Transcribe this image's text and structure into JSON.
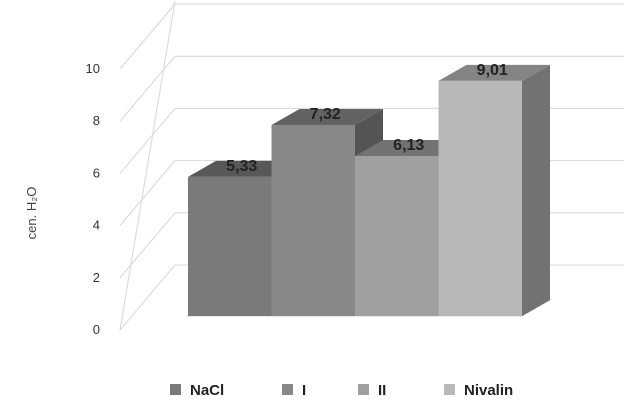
{
  "chart_data": {
    "type": "bar",
    "style": "3d-column",
    "categories": [
      "NaCl",
      "I",
      "II",
      "Nivalin"
    ],
    "values": [
      5.33,
      7.32,
      6.13,
      9.01
    ],
    "data_labels": [
      "5,33",
      "7,32",
      "6,13",
      "9,01"
    ],
    "ylabel": "cen. H₂O",
    "xlabel": "",
    "title": "",
    "ylim": [
      0,
      10
    ],
    "yticks": [
      0,
      2,
      4,
      6,
      8,
      10
    ],
    "grid": true,
    "legend": {
      "position": "bottom",
      "entries": [
        "NaCl",
        "I",
        "II",
        "Nivalin"
      ]
    },
    "colors": [
      "#7a7a7a",
      "#888888",
      "#a0a0a0",
      "#b8b8b8"
    ]
  }
}
